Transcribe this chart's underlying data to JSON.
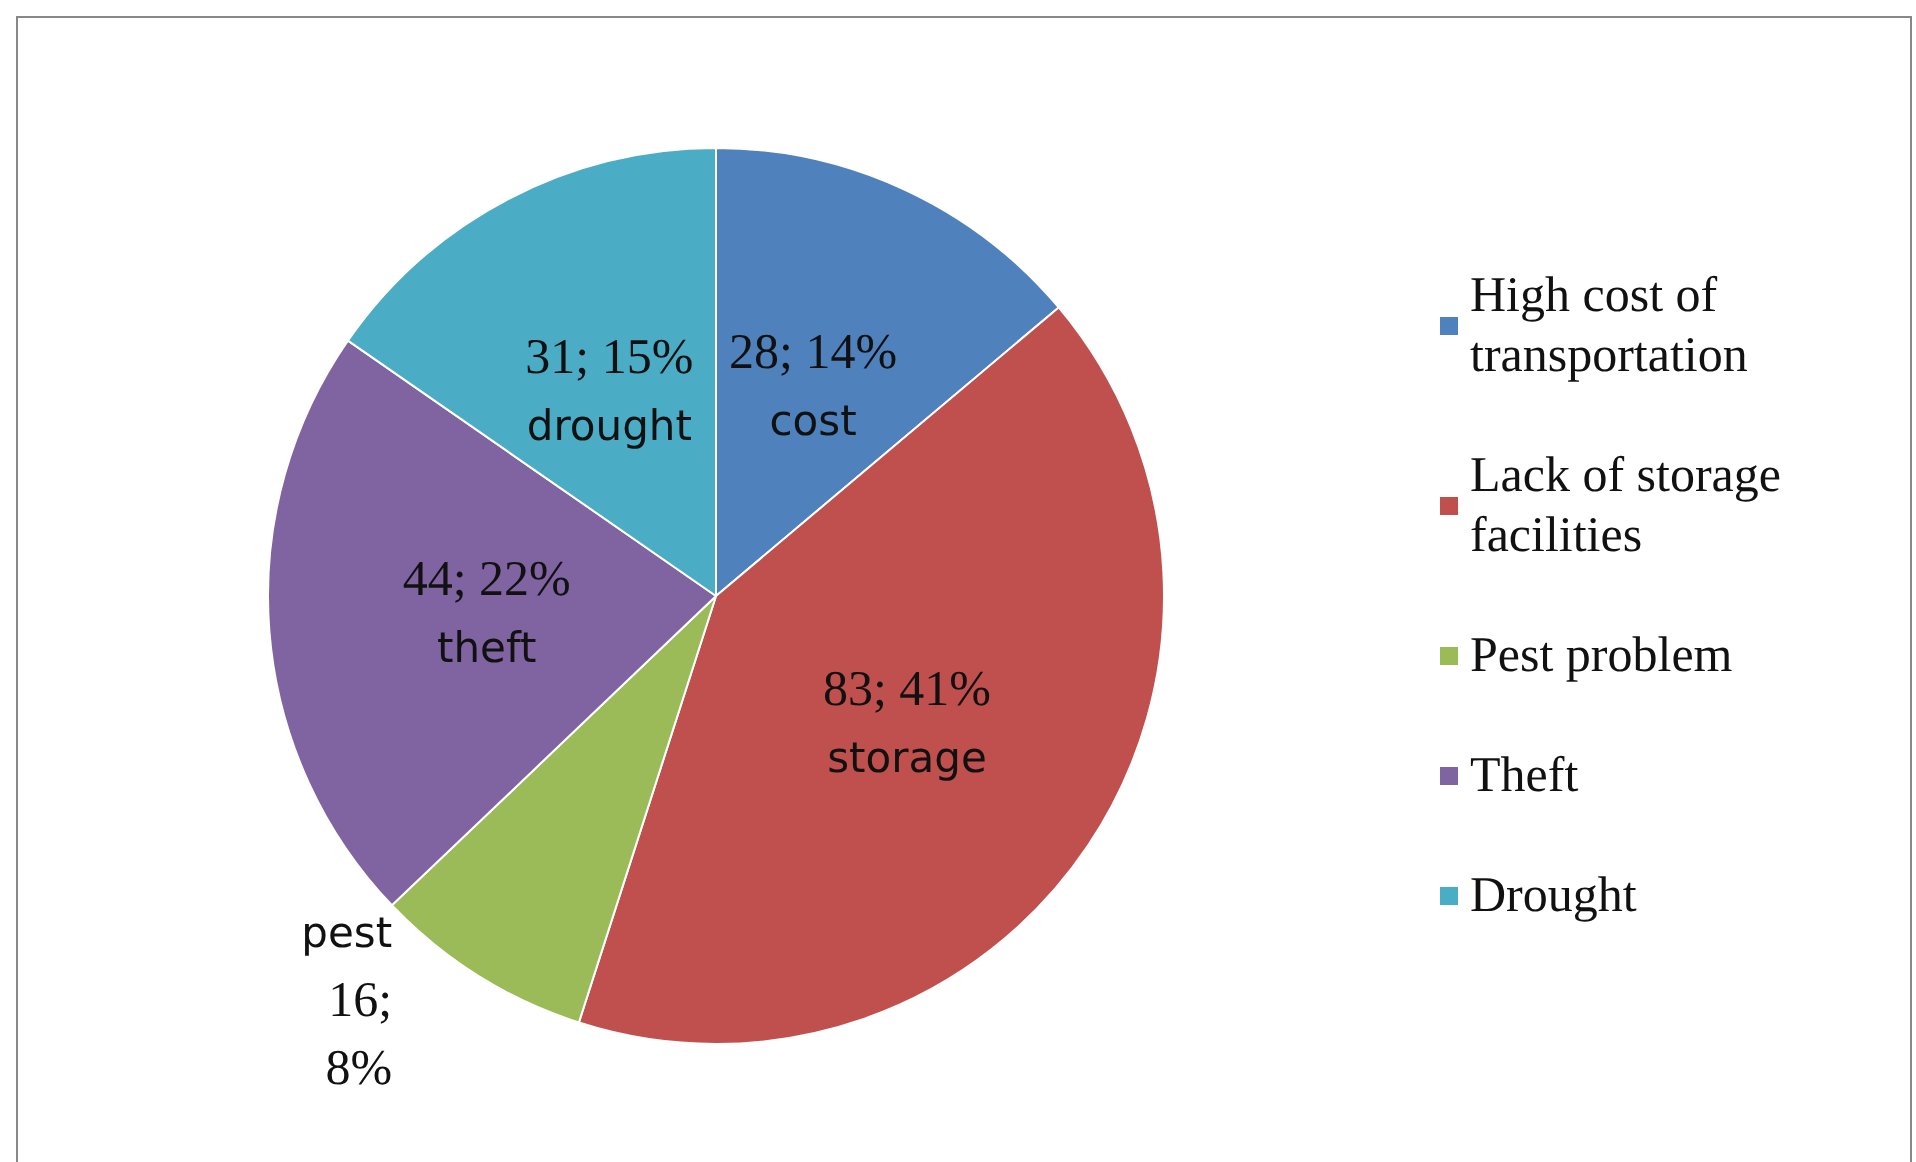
{
  "chart_data": {
    "type": "pie",
    "categories": [
      "High cost of transportation",
      "Lack of storage facilities",
      "Pest problem",
      "Theft",
      "Drought"
    ],
    "values": [
      28,
      83,
      16,
      44,
      31
    ],
    "colors": [
      "#4f81bd",
      "#c0504d",
      "#9bbb59",
      "#8064a2",
      "#4bacc6"
    ],
    "value_labels": [
      "28; 14%",
      "83; 41%",
      "16; 8%",
      "44; 22%",
      "31; 15%"
    ],
    "annotations": [
      "cost",
      "storage",
      "pest",
      "theft",
      "drought"
    ],
    "legend": "right"
  }
}
